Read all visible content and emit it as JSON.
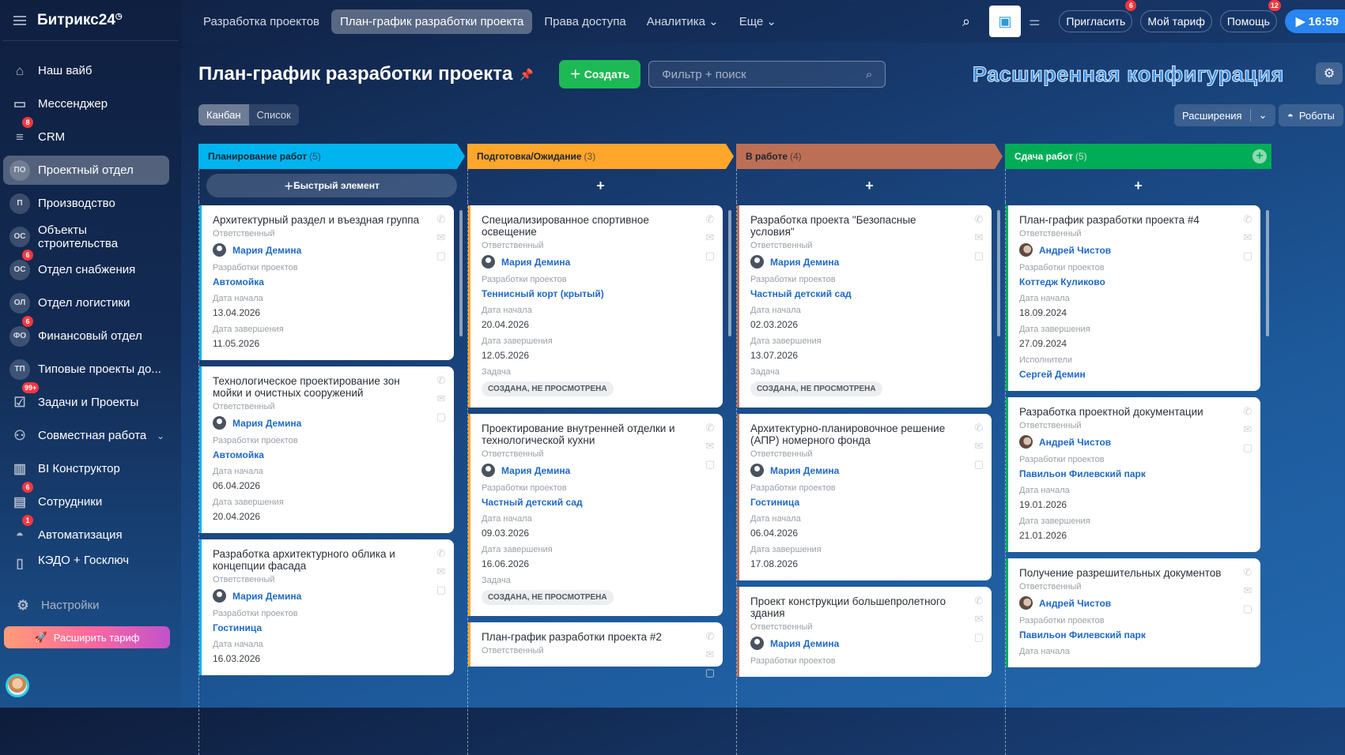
{
  "sidebar": {
    "logo": "Битрикс24",
    "items": [
      {
        "label": "Наш вайб",
        "icon": "home-icon",
        "glyph": "⌂"
      },
      {
        "label": "Мессенджер",
        "icon": "chat-icon",
        "glyph": "▭"
      },
      {
        "label": "CRM",
        "icon": "funnel-icon",
        "glyph": "≡",
        "badge": "8"
      },
      {
        "label": "Проектный отдел",
        "abbr": "ПО",
        "active": true
      },
      {
        "label": "Производство",
        "abbr": "П"
      },
      {
        "label": "Объекты строительства",
        "abbr": "ОС"
      },
      {
        "label": "Отдел снабжения",
        "abbr": "ОС",
        "badge": "6"
      },
      {
        "label": "Отдел логистики",
        "abbr": "ОЛ"
      },
      {
        "label": "Финансовый отдел",
        "abbr": "ФО",
        "badge": "6"
      },
      {
        "label": "Типовые проекты до...",
        "abbr": "ТП"
      },
      {
        "label": "Задачи и Проекты",
        "icon": "tasks-icon",
        "glyph": "☑",
        "badge": "99+"
      },
      {
        "label": "Совместная работа",
        "icon": "collab-icon",
        "glyph": "⚇",
        "chevron": true
      },
      {
        "label": "BI Конструктор",
        "icon": "chart-icon",
        "glyph": "▥"
      },
      {
        "label": "Сотрудники",
        "icon": "employees-icon",
        "glyph": "▤",
        "badge": "6"
      },
      {
        "label": "Автоматизация",
        "icon": "robot-icon",
        "glyph": "◓",
        "badge": "1"
      },
      {
        "label": "КЭДО + Госключ",
        "icon": "document-icon",
        "glyph": "▯"
      }
    ],
    "settings": "Настройки",
    "upgrade": "Расширить тариф"
  },
  "topnav": {
    "items": [
      "Разработка проектов",
      "План-график разработки проекта",
      "Права доступа",
      "Аналитика ⌄",
      "Еще ⌄"
    ],
    "active": 1,
    "invite": "Пригласить",
    "invite_badge": "6",
    "tariff": "Мой тариф",
    "help": "Помощь",
    "help_badge": "12",
    "time": "16:59"
  },
  "header": {
    "title": "План-график разработки проекта",
    "create": "Создать",
    "search_placeholder": "Фильтр + поиск",
    "banner": "Расширенная конфигурация",
    "views": [
      "Канбан",
      "Список"
    ],
    "extensions": "Расширения",
    "robots": "Роботы"
  },
  "quick_add": "Быстрый элемент",
  "columns": [
    {
      "title": "Планирование работ",
      "count": "(5)",
      "color": "#00b4f0",
      "cards": [
        {
          "title": "Архитектурный раздел и въездная группа",
          "fields": [
            {
              "label": "Ответственный",
              "person": "Мария Демина"
            },
            {
              "label": "Разработки проектов",
              "link": "Автомойка"
            },
            {
              "label": "Дата начала",
              "value": "13.04.2026"
            },
            {
              "label": "Дата завершения",
              "value": "11.05.2026"
            }
          ]
        },
        {
          "title": "Технологическое проектирование зон мойки и очистных сооружений",
          "fields": [
            {
              "label": "Ответственный",
              "person": "Мария Демина"
            },
            {
              "label": "Разработки проектов",
              "link": "Автомойка"
            },
            {
              "label": "Дата начала",
              "value": "06.04.2026"
            },
            {
              "label": "Дата завершения",
              "value": "20.04.2026"
            }
          ]
        },
        {
          "title": "Разработка архитектурного облика и концепции фасада",
          "fields": [
            {
              "label": "Ответственный",
              "person": "Мария Демина"
            },
            {
              "label": "Разработки проектов",
              "link": "Гостиница"
            },
            {
              "label": "Дата начала",
              "value": "16.03.2026"
            }
          ]
        }
      ]
    },
    {
      "title": "Подготовка/Ожидание",
      "count": "(3)",
      "color": "#ffa62b",
      "cards": [
        {
          "title": "Специализированное спортивное освещение",
          "fields": [
            {
              "label": "Ответственный",
              "person": "Мария Демина"
            },
            {
              "label": "Разработки проектов",
              "link": "Теннисный корт (крытый)"
            },
            {
              "label": "Дата начала",
              "value": "20.04.2026"
            },
            {
              "label": "Дата завершения",
              "value": "12.05.2026"
            },
            {
              "label": "Задача",
              "tag": "СОЗДАНА, НЕ ПРОСМОТРЕНА"
            }
          ]
        },
        {
          "title": "Проектирование внутренней отделки и технологической кухни",
          "fields": [
            {
              "label": "Ответственный",
              "person": "Мария Демина"
            },
            {
              "label": "Разработки проектов",
              "link": "Частный детский сад"
            },
            {
              "label": "Дата начала",
              "value": "09.03.2026"
            },
            {
              "label": "Дата завершения",
              "value": "16.06.2026"
            },
            {
              "label": "Задача",
              "tag": "СОЗДАНА, НЕ ПРОСМОТРЕНА"
            }
          ]
        },
        {
          "title": "План-график разработки проекта #2",
          "fields": [
            {
              "label": "Ответственный"
            }
          ]
        }
      ]
    },
    {
      "title": "В работе",
      "count": "(4)",
      "color": "#bd6f55",
      "cards": [
        {
          "title": "Разработка проекта \"Безопасные условия\"",
          "fields": [
            {
              "label": "Ответственный",
              "person": "Мария Демина"
            },
            {
              "label": "Разработки проектов",
              "link": "Частный детский сад"
            },
            {
              "label": "Дата начала",
              "value": "02.03.2026"
            },
            {
              "label": "Дата завершения",
              "value": "13.07.2026"
            },
            {
              "label": "Задача",
              "tag": "СОЗДАНА, НЕ ПРОСМОТРЕНА"
            }
          ]
        },
        {
          "title": "Архитектурно-планировочное решение (АПР) номерного фонда",
          "fields": [
            {
              "label": "Ответственный",
              "person": "Мария Демина"
            },
            {
              "label": "Разработки проектов",
              "link": "Гостиница"
            },
            {
              "label": "Дата начала",
              "value": "06.04.2026"
            },
            {
              "label": "Дата завершения",
              "value": "17.08.2026"
            }
          ]
        },
        {
          "title": "Проект конструкции большепролетного здания",
          "fields": [
            {
              "label": "Ответственный",
              "person": "Мария Демина"
            },
            {
              "label": "Разработки проектов"
            }
          ]
        }
      ]
    },
    {
      "title": "Сдача работ",
      "count": "(5)",
      "color": "#00ad56",
      "cards": [
        {
          "title": "План-график разработки проекта #4",
          "fields": [
            {
              "label": "Ответственный",
              "person": "Андрей Чистов",
              "photo": true
            },
            {
              "label": "Разработки проектов",
              "link": "Коттедж Куликово"
            },
            {
              "label": "Дата начала",
              "value": "18.09.2024"
            },
            {
              "label": "Дата завершения",
              "value": "27.09.2024"
            },
            {
              "label": "Исполнители",
              "link": "Сергей Демин"
            }
          ]
        },
        {
          "title": "Разработка проектной документации",
          "fields": [
            {
              "label": "Ответственный",
              "person": "Андрей Чистов",
              "photo": true
            },
            {
              "label": "Разработки проектов",
              "link": "Павильон Филевский парк"
            },
            {
              "label": "Дата начала",
              "value": "19.01.2026"
            },
            {
              "label": "Дата завершения",
              "value": "21.01.2026"
            }
          ]
        },
        {
          "title": "Получение разрешительных документов",
          "fields": [
            {
              "label": "Ответственный",
              "person": "Андрей Чистов",
              "photo": true
            },
            {
              "label": "Разработки проектов",
              "link": "Павильон Филевский парк"
            },
            {
              "label": "Дата начала"
            }
          ]
        }
      ]
    }
  ]
}
